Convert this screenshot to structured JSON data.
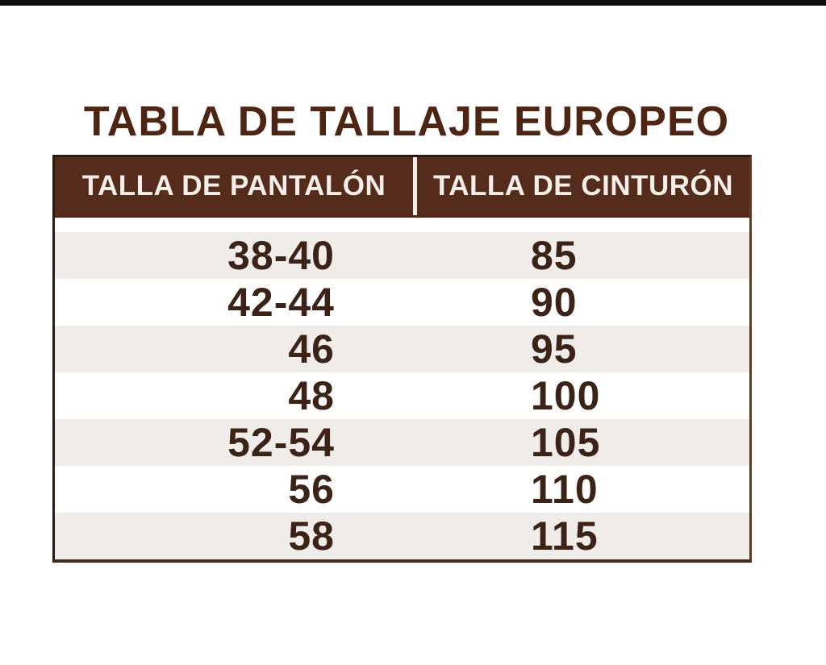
{
  "page": {
    "background": "#ffffff",
    "top_bar_color": "#0d0d0d"
  },
  "title": {
    "text": "TABLA DE TALLAJE EUROPEO",
    "color": "#4e2413"
  },
  "size_table": {
    "header": {
      "col1": "TALLA DE PANTALÓN",
      "col2": "TALLA DE CINTURÓN",
      "bg_color": "#552c1b",
      "text_color": "#f3eee9",
      "divider_color": "#f2ece6"
    },
    "stripe_color": "#f0ece9",
    "number_color": "#3b2317",
    "rows": [
      {
        "pantalon": "38-40",
        "cinturon": "85"
      },
      {
        "pantalon": "42-44",
        "cinturon": "90"
      },
      {
        "pantalon": "46",
        "cinturon": "95"
      },
      {
        "pantalon": "48",
        "cinturon": "100"
      },
      {
        "pantalon": "52-54",
        "cinturon": "105"
      },
      {
        "pantalon": "56",
        "cinturon": "110"
      },
      {
        "pantalon": "58",
        "cinturon": "115"
      }
    ]
  },
  "chart_data": {
    "type": "table",
    "title": "TABLA DE TALLAJE EUROPEO",
    "columns": [
      "TALLA DE PANTALÓN",
      "TALLA DE CINTURÓN"
    ],
    "rows": [
      [
        "38-40",
        "85"
      ],
      [
        "42-44",
        "90"
      ],
      [
        "46",
        "95"
      ],
      [
        "48",
        "100"
      ],
      [
        "52-54",
        "105"
      ],
      [
        "56",
        "110"
      ],
      [
        "58",
        "115"
      ]
    ]
  }
}
